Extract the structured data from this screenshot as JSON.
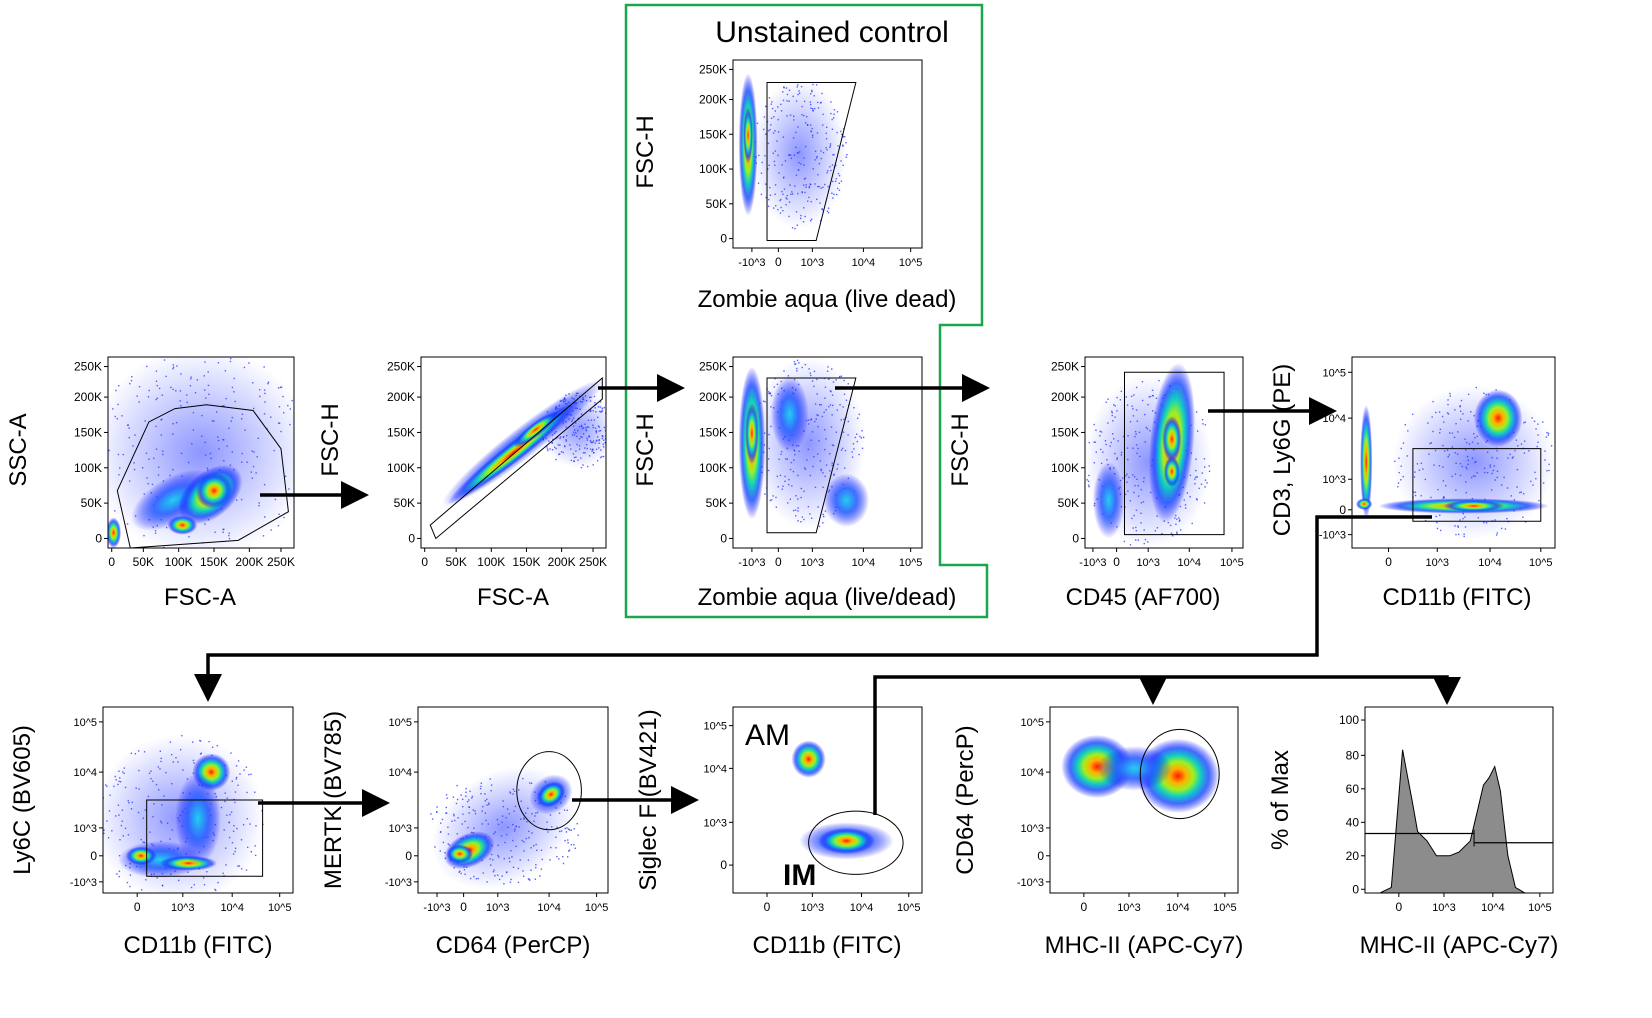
{
  "colors": {
    "unstained_box": "#1aa64a",
    "gate": "#000000",
    "density_low": "#0000ff",
    "density_high": "#ff0000",
    "histogram_fill": "#8c8c8c"
  },
  "unstained_title": "Unstained control",
  "panels": [
    {
      "id": "p1",
      "ylabel": "SSC-A",
      "xlabel": "FSC-A",
      "yticks": [
        "0",
        "50K",
        "100K",
        "150K",
        "200K",
        "250K"
      ],
      "xticks": [
        "0",
        "50K",
        "100K",
        "150K",
        "200K",
        "250K"
      ]
    },
    {
      "id": "p2",
      "ylabel": "FSC-H",
      "xlabel": "FSC-A",
      "yticks": [
        "0",
        "50K",
        "100K",
        "150K",
        "200K",
        "250K"
      ],
      "xticks": [
        "0",
        "50K",
        "100K",
        "150K",
        "200K",
        "250K"
      ]
    },
    {
      "id": "p3",
      "ylabel": "FSC-H",
      "xlabel": "Zombie aqua (live dead)",
      "yticks": [
        "0",
        "50K",
        "100K",
        "150K",
        "200K",
        "250K"
      ],
      "xticks": [
        "-10^3",
        "0",
        "10^3",
        "10^4",
        "10^5"
      ]
    },
    {
      "id": "p4",
      "ylabel": "FSC-H",
      "xlabel": "Zombie aqua (live/dead)",
      "yticks": [
        "0",
        "50K",
        "100K",
        "150K",
        "200K",
        "250K"
      ],
      "xticks": [
        "-10^3",
        "0",
        "10^3",
        "10^4",
        "10^5"
      ]
    },
    {
      "id": "p5",
      "ylabel": "FSC-H",
      "xlabel": "CD45 (AF700)",
      "yticks": [
        "0",
        "50K",
        "100K",
        "150K",
        "200K",
        "250K"
      ],
      "xticks": [
        "-10^3",
        "0",
        "10^3",
        "10^4",
        "10^5"
      ]
    },
    {
      "id": "p6",
      "ylabel": "CD3, Ly6G (PE)",
      "xlabel": "CD11b (FITC)",
      "yticks": [
        "-10^3",
        "0",
        "10^3",
        "10^4",
        "10^5"
      ],
      "xticks": [
        "0",
        "10^3",
        "10^4",
        "10^5"
      ]
    },
    {
      "id": "p7",
      "ylabel": "Ly6C (BV605)",
      "xlabel": "CD11b (FITC)",
      "yticks": [
        "-10^3",
        "0",
        "10^3",
        "10^4",
        "10^5"
      ],
      "xticks": [
        "0",
        "10^3",
        "10^4",
        "10^5"
      ]
    },
    {
      "id": "p8",
      "ylabel": "MERTK (BV785)",
      "xlabel": "CD64 (PerCP)",
      "yticks": [
        "-10^3",
        "0",
        "10^3",
        "10^4",
        "10^5"
      ],
      "xticks": [
        "-10^3",
        "0",
        "10^3",
        "10^4",
        "10^5"
      ]
    },
    {
      "id": "p9",
      "ylabel": "Siglec F (BV421)",
      "xlabel": "CD11b (FITC)",
      "yticks": [
        "0",
        "10^3",
        "10^4",
        "10^5"
      ],
      "xticks": [
        "0",
        "10^3",
        "10^4",
        "10^5"
      ],
      "annotations": [
        "AM",
        "IM"
      ]
    },
    {
      "id": "p10",
      "ylabel": "CD64 (PercP)",
      "xlabel": "MHC-II (APC-Cy7)",
      "yticks": [
        "-10^3",
        "0",
        "10^3",
        "10^4",
        "10^5"
      ],
      "xticks": [
        "0",
        "10^3",
        "10^4",
        "10^5"
      ]
    },
    {
      "id": "p11",
      "ylabel": "% of Max",
      "xlabel": "MHC-II (APC-Cy7)",
      "yticks": [
        "0",
        "20",
        "40",
        "60",
        "80",
        "100"
      ],
      "xticks": [
        "0",
        "10^3",
        "10^4",
        "10^5"
      ]
    }
  ]
}
